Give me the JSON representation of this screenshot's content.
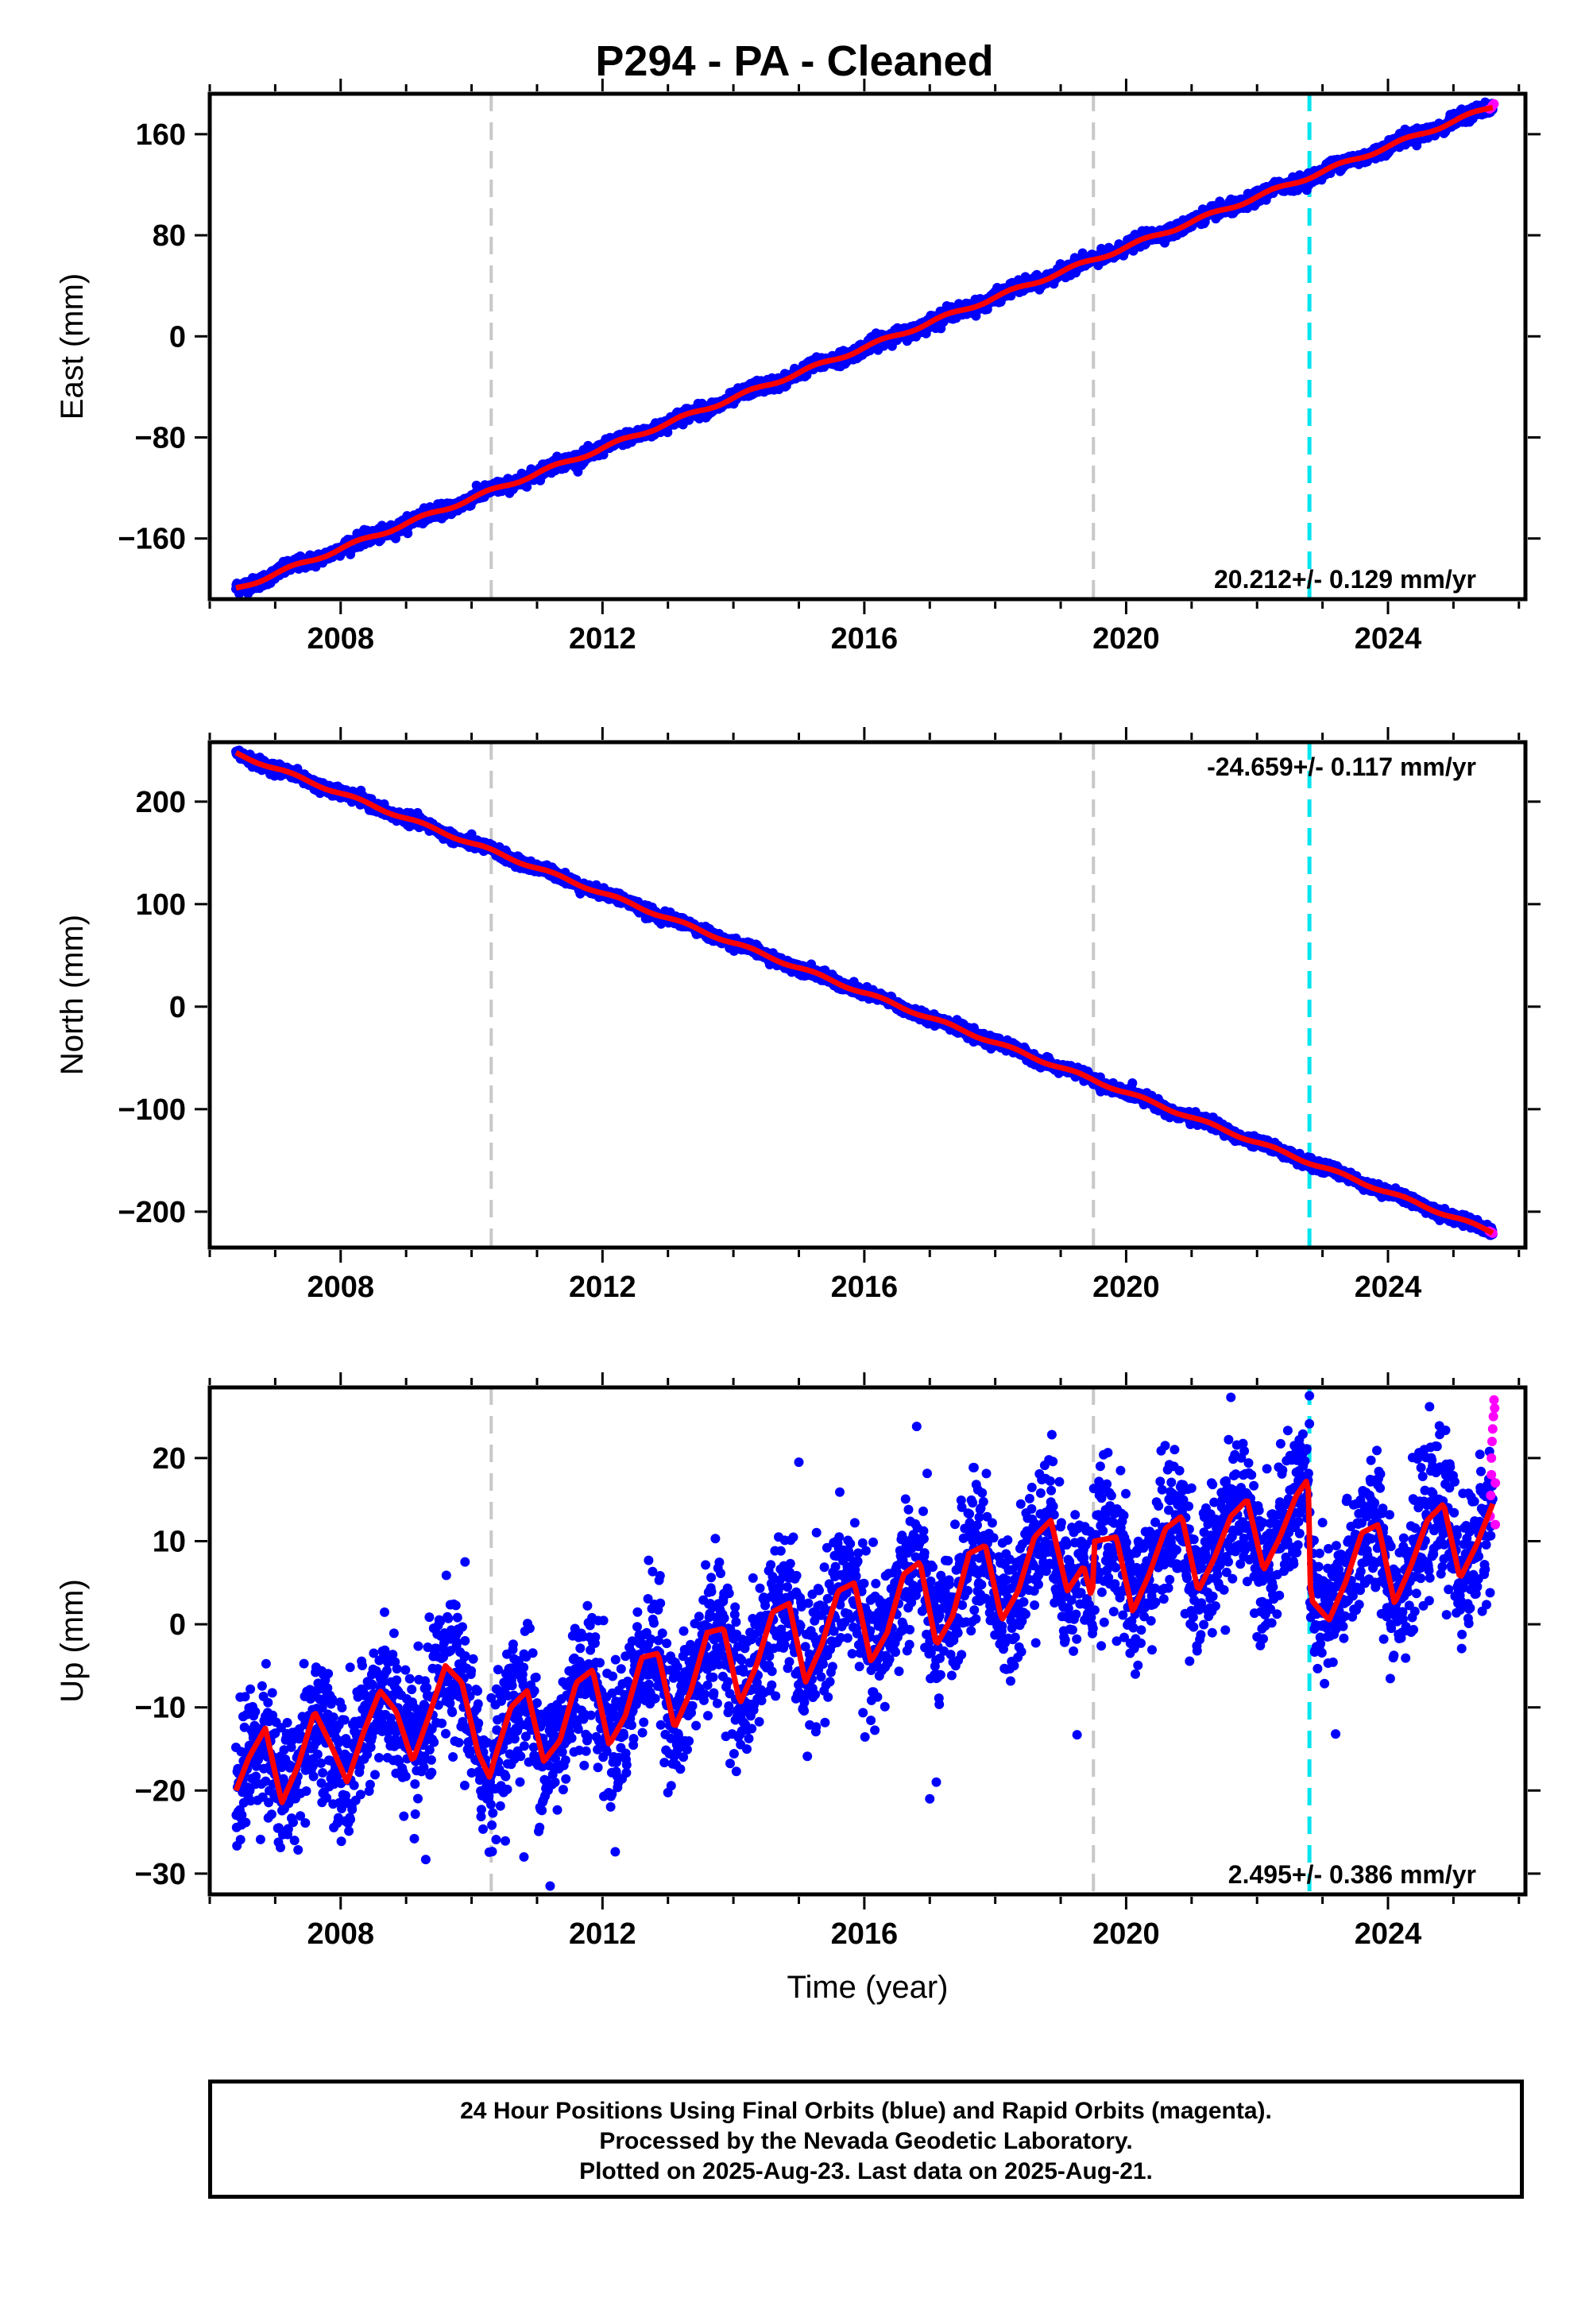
{
  "title": "P294  - PA - Cleaned",
  "footer": {
    "line1": "24 Hour Positions Using Final Orbits (blue) and Rapid Orbits (magenta).",
    "line2": "Processed by the Nevada Geodetic Laboratory.",
    "line3": "Plotted on 2025-Aug-23. Last data on 2025-Aug-21."
  },
  "colors": {
    "final_orbits": "#0000ff",
    "rapid_orbits": "#ff00ff",
    "model_fit": "#ff0000",
    "equipment_change": "#c8c8c8",
    "earthquake": "#00e5ee"
  },
  "chart_data": [
    {
      "type": "scatter",
      "ylabel": "East (mm)",
      "xlabel": "",
      "x_ticks": [
        "2008",
        "2012",
        "2016",
        "2020",
        "2024"
      ],
      "y_ticks": [
        "160",
        "80",
        "0",
        "−80",
        "−160"
      ],
      "xlim": [
        2006.0,
        2026.1
      ],
      "ylim": [
        -208,
        192
      ],
      "rate_label": "20.212+/- 0.129 mm/yr",
      "rate_position": "bottom-right",
      "trend": {
        "start_year": 2006.4,
        "start_value": -200,
        "end_year": 2025.6,
        "end_value": 182,
        "seasonal_amplitude": 1.5
      },
      "scatter_sd": 2.5,
      "rapid_points": [
        [
          2025.55,
          180
        ],
        [
          2025.58,
          181
        ],
        [
          2025.6,
          183
        ],
        [
          2025.62,
          184
        ]
      ],
      "vlines_grey": [
        2010.3,
        2019.5
      ],
      "vlines_cyan": [
        2022.8
      ],
      "grid": false
    },
    {
      "type": "scatter",
      "ylabel": "North (mm)",
      "xlabel": "",
      "x_ticks": [
        "2008",
        "2012",
        "2016",
        "2020",
        "2024"
      ],
      "y_ticks": [
        "200",
        "100",
        "0",
        "−100",
        "−200"
      ],
      "xlim": [
        2006.0,
        2026.1
      ],
      "ylim": [
        -235,
        258
      ],
      "rate_label": "-24.659+/- 0.117 mm/yr",
      "rate_position": "top-right",
      "trend": {
        "start_year": 2006.4,
        "start_value": 247,
        "end_year": 2025.6,
        "end_value": -220,
        "seasonal_amplitude": 1.5
      },
      "scatter_sd": 2.5,
      "rapid_points": [
        [
          2025.55,
          -219
        ],
        [
          2025.58,
          -220
        ],
        [
          2025.6,
          -221
        ]
      ],
      "vlines_grey": [
        2010.3,
        2019.5
      ],
      "vlines_cyan": [
        2022.8
      ],
      "grid": false
    },
    {
      "type": "scatter",
      "ylabel": "Up (mm)",
      "xlabel": "Time (year)",
      "x_ticks": [
        "2008",
        "2012",
        "2016",
        "2020",
        "2024"
      ],
      "y_ticks": [
        "20",
        "10",
        "0",
        "−10",
        "−20",
        "−30"
      ],
      "xlim": [
        2006.0,
        2026.1
      ],
      "ylim": [
        -32.5,
        28.5
      ],
      "rate_label": "2.495+/- 0.386 mm/yr",
      "rate_position": "bottom-right",
      "fit_curve": {
        "x": [
          2006.4,
          2006.6,
          2006.85,
          2007.1,
          2007.35,
          2007.6,
          2007.85,
          2008.1,
          2008.35,
          2008.6,
          2008.85,
          2009.1,
          2009.35,
          2009.6,
          2009.85,
          2010.1,
          2010.28,
          2010.32,
          2010.6,
          2010.85,
          2011.1,
          2011.35,
          2011.6,
          2011.85,
          2012.1,
          2012.35,
          2012.6,
          2012.85,
          2013.1,
          2013.35,
          2013.6,
          2013.85,
          2014.1,
          2014.35,
          2014.6,
          2014.85,
          2015.1,
          2015.35,
          2015.6,
          2015.85,
          2016.1,
          2016.35,
          2016.6,
          2016.85,
          2017.1,
          2017.35,
          2017.6,
          2017.85,
          2018.1,
          2018.35,
          2018.6,
          2018.85,
          2019.1,
          2019.35,
          2019.48,
          2019.52,
          2019.85,
          2020.1,
          2020.35,
          2020.6,
          2020.85,
          2021.1,
          2021.35,
          2021.6,
          2021.85,
          2022.1,
          2022.35,
          2022.6,
          2022.78,
          2022.82,
          2023.1,
          2023.35,
          2023.6,
          2023.85,
          2024.1,
          2024.35,
          2024.6,
          2024.85,
          2025.1,
          2025.35,
          2025.6
        ],
        "y": [
          -20,
          -16,
          -12.5,
          -21.5,
          -17,
          -10.5,
          -14.5,
          -19,
          -13,
          -8,
          -10.5,
          -16.5,
          -11,
          -5,
          -7,
          -15.5,
          -18.5,
          -17,
          -10,
          -8,
          -16.5,
          -14,
          -7,
          -5.5,
          -14.5,
          -11,
          -4,
          -3.5,
          -12.5,
          -8,
          -1,
          -0.5,
          -9.5,
          -5,
          1.5,
          2.5,
          -7,
          -2.5,
          4,
          5,
          -4.5,
          -1,
          6,
          7.5,
          -2.5,
          1,
          8.5,
          9.5,
          0.5,
          4,
          10.5,
          12.5,
          4,
          7,
          3,
          10,
          10.5,
          1.5,
          6,
          11.5,
          13,
          4,
          8,
          13,
          15,
          6.5,
          10.5,
          15.5,
          17.5,
          3,
          0.5,
          5,
          11,
          12,
          2.5,
          7,
          12.5,
          14.5,
          5.5,
          9.5,
          14.5
        ]
      },
      "scatter_sd": 4.2,
      "rapid_points": [
        [
          2025.56,
          13
        ],
        [
          2025.57,
          15.5
        ],
        [
          2025.58,
          18
        ],
        [
          2025.58,
          20
        ],
        [
          2025.59,
          22
        ],
        [
          2025.6,
          23.5
        ],
        [
          2025.61,
          25
        ],
        [
          2025.62,
          27
        ],
        [
          2025.63,
          26
        ],
        [
          2025.64,
          17
        ],
        [
          2025.64,
          12
        ]
      ],
      "outliers": [
        [
          2017.1,
          -19
        ],
        [
          2017.0,
          -21
        ],
        [
          2010.8,
          -28
        ],
        [
          2011.2,
          -31.5
        ],
        [
          2009.3,
          -28.3
        ],
        [
          2023.2,
          -13.2
        ],
        [
          2019.25,
          -13.3
        ],
        [
          2009.9,
          7.5
        ],
        [
          2015.0,
          19.5
        ],
        [
          2016.8,
          23.8
        ],
        [
          2021.6,
          27.3
        ],
        [
          2022.8,
          27.5
        ]
      ],
      "vlines_grey": [
        2010.3,
        2019.5
      ],
      "vlines_cyan": [
        2022.8
      ],
      "grid": false
    }
  ]
}
